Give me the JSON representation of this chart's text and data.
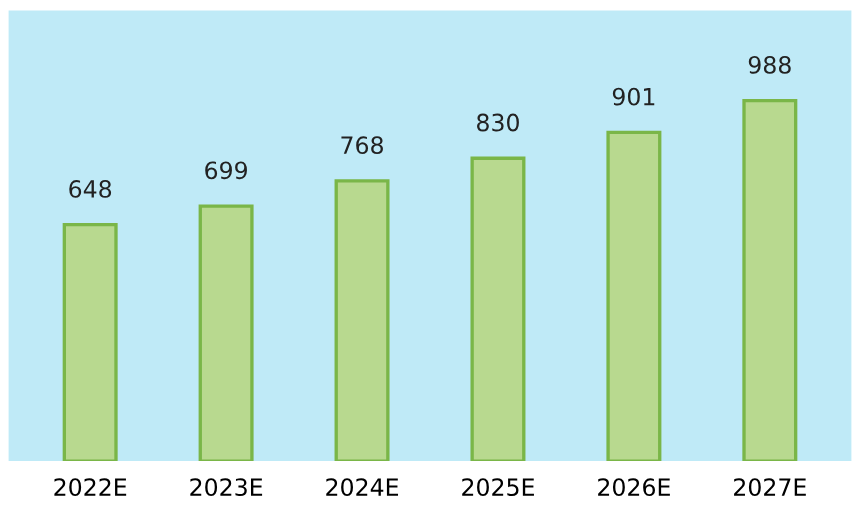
{
  "chart_data": {
    "type": "bar",
    "categories": [
      "2022E",
      "2023E",
      "2024E",
      "2025E",
      "2026E",
      "2027E"
    ],
    "values": [
      648,
      699,
      768,
      830,
      901,
      988
    ],
    "color": "#b8d98f",
    "data_labels": true,
    "grid": false,
    "legend": false
  }
}
